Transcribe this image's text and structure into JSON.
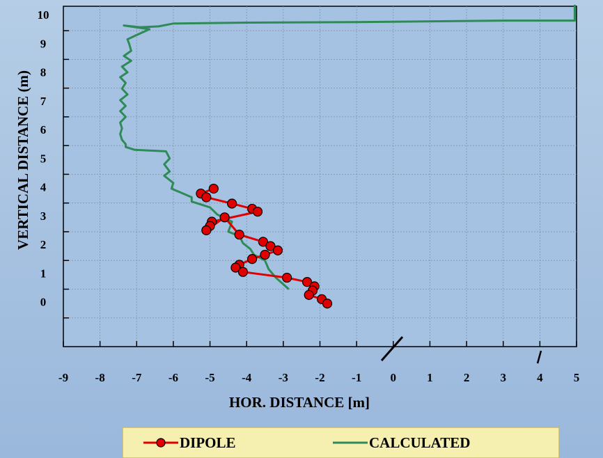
{
  "chart_data": {
    "type": "line",
    "xlabel": "HOR. DISTANCE  [m]",
    "ylabel": "VERTICAL DISTANCE (m)",
    "xlim": [
      -9,
      5
    ],
    "ylim": [
      -1,
      10.85
    ],
    "x_ticks": [
      "-9",
      "-8",
      "-7",
      "-6",
      "-5",
      "-4",
      "-3",
      "-2",
      "-1",
      "0",
      "1",
      "2",
      "3",
      "4",
      "5"
    ],
    "y_ticks": [
      "0",
      "1",
      "2",
      "3",
      "4",
      "5",
      "6",
      "7",
      "8",
      "9",
      "10"
    ],
    "grid": true,
    "legend_position": "bottom",
    "colors": {
      "dipole": "#e00000",
      "calculated": "#2e8b57",
      "plot_bg": "#a6c2e2",
      "legend_bg": "#f5efb0"
    },
    "series": [
      {
        "name": "DIPOLE",
        "marker": "circle",
        "x": [
          -4.9,
          -5.25,
          -5.1,
          -4.4,
          -3.85,
          -3.7,
          -4.95,
          -5.0,
          -5.1,
          -4.6,
          -4.2,
          -3.55,
          -3.35,
          -3.15,
          -3.5,
          -3.85,
          -4.2,
          -4.3,
          -4.1,
          -2.9,
          -2.35,
          -2.15,
          -2.2,
          -2.3,
          -1.95,
          -1.8
        ],
        "y": [
          4.5,
          4.33,
          4.2,
          3.98,
          3.8,
          3.7,
          3.35,
          3.2,
          3.05,
          3.5,
          2.9,
          2.65,
          2.5,
          2.35,
          2.2,
          2.05,
          1.85,
          1.75,
          1.6,
          1.4,
          1.25,
          1.1,
          0.95,
          0.8,
          0.65,
          0.5
        ]
      },
      {
        "name": "CALCULATED",
        "x": [
          4.95,
          4.95,
          4.95,
          3.0,
          -1.0,
          -4.0,
          -6.0,
          -6.4,
          -6.9,
          -7.35,
          -6.65,
          -7.0,
          -7.25,
          -7.2,
          -7.15,
          -7.35,
          -7.15,
          -7.4,
          -7.25,
          -7.45,
          -7.3,
          -7.4,
          -7.25,
          -7.45,
          -7.3,
          -7.45,
          -7.3,
          -7.45,
          -7.4,
          -7.45,
          -7.4,
          -7.3,
          -7.3,
          -7.05,
          -6.2,
          -6.1,
          -6.25,
          -6.1,
          -6.25,
          -6.0,
          -6.05,
          -5.5,
          -5.5,
          -5.0,
          -4.8,
          -4.4,
          -4.5,
          -4.2,
          -4.1,
          -3.9,
          -3.8,
          -3.5,
          -3.4,
          -3.2,
          -2.85
        ],
        "y": [
          10.9,
          10.7,
          10.35,
          10.35,
          10.3,
          10.28,
          10.25,
          10.15,
          10.12,
          10.18,
          10.05,
          9.85,
          9.7,
          9.52,
          9.3,
          9.12,
          8.95,
          8.75,
          8.55,
          8.38,
          8.18,
          7.98,
          7.78,
          7.58,
          7.38,
          7.2,
          7.0,
          6.8,
          6.6,
          6.4,
          6.2,
          6.05,
          5.95,
          5.85,
          5.8,
          5.55,
          5.35,
          5.1,
          4.95,
          4.7,
          4.5,
          4.2,
          4.05,
          3.85,
          3.6,
          3.35,
          3.0,
          2.85,
          2.6,
          2.4,
          2.2,
          2.0,
          1.7,
          1.4,
          1.0
        ]
      }
    ]
  }
}
